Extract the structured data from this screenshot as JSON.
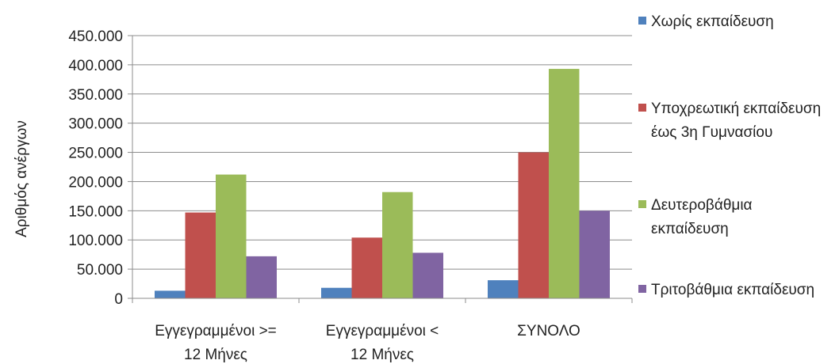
{
  "chart_data": {
    "type": "bar",
    "title": "",
    "xlabel": "",
    "ylabel": "Αριθμός ανέργων",
    "categories": [
      "Εγγεγραμμένοι >= 12 Μήνες",
      "Εγγεγραμμένοι < 12 Μήνες",
      "ΣΥΝΟΛΟ"
    ],
    "category_lines": [
      [
        "Εγγεγραμμένοι >=",
        "12 Μήνες"
      ],
      [
        "Εγγεγραμμένοι <",
        "12 Μήνες"
      ],
      [
        "ΣΥΝΟΛΟ"
      ]
    ],
    "ylim": [
      0,
      450000
    ],
    "yticks": [
      0,
      50000,
      100000,
      150000,
      200000,
      250000,
      300000,
      350000,
      400000,
      450000
    ],
    "ytick_labels": [
      "0",
      "50.000",
      "100.000",
      "150.000",
      "200.000",
      "250.000",
      "300.000",
      "350.000",
      "400.000",
      "450.000"
    ],
    "grid": "horizontal",
    "legend_position": "right",
    "series": [
      {
        "name": "Χωρίς εκπαίδευση",
        "values": [
          13000,
          18000,
          31000
        ],
        "color": "#4F81BD"
      },
      {
        "name": "Υποχρεωτική εκπαίδευση έως 3η Γυμνασίου",
        "values": [
          147000,
          104000,
          250000
        ],
        "color": "#C0504D"
      },
      {
        "name": "Δευτεροβάθμια εκπαίδευση",
        "values": [
          212000,
          182000,
          393000
        ],
        "color": "#9BBB59"
      },
      {
        "name": "Τριτοβάθμια εκπαίδευση",
        "values": [
          72000,
          78000,
          150000
        ],
        "color": "#8064A2"
      }
    ]
  }
}
